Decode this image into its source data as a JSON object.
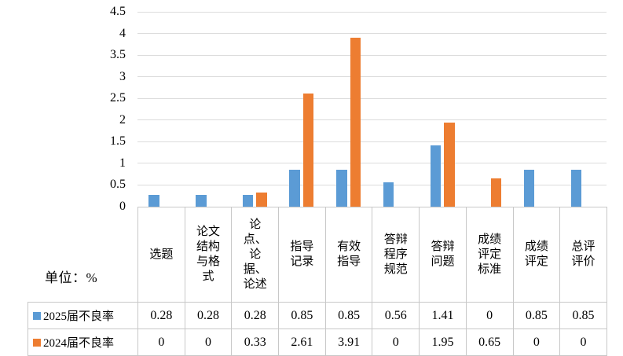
{
  "unit_label": "单位：%",
  "colors": {
    "series_2025": "#5B9BD5",
    "series_2024": "#ED7D31",
    "gridline": "#DCDCDC",
    "table_border": "#C8C8C8"
  },
  "chart_data": {
    "type": "bar",
    "title": "",
    "xlabel": "",
    "ylabel": "",
    "unit": "%",
    "categories": [
      "选题",
      "论文结构与格式",
      "论点、论据、论述",
      "指导记录",
      "有效指导",
      "答辩程序规范",
      "答辩问题",
      "成绩评定标准",
      "成绩评定",
      "总评评价"
    ],
    "series": [
      {
        "name": "2025届不良率",
        "color": "#5B9BD5",
        "values": [
          0.28,
          0.28,
          0.28,
          0.85,
          0.85,
          0.56,
          1.41,
          0,
          0.85,
          0.85
        ]
      },
      {
        "name": "2024届不良率",
        "color": "#ED7D31",
        "values": [
          0,
          0,
          0.33,
          2.61,
          3.91,
          0,
          1.95,
          0.65,
          0,
          0
        ]
      }
    ],
    "ylim": [
      0,
      4.5
    ],
    "yticks": [
      0,
      0.5,
      1,
      1.5,
      2,
      2.5,
      3,
      3.5,
      4,
      4.5
    ],
    "grid": true,
    "legend_position": "left-of-data-table"
  }
}
